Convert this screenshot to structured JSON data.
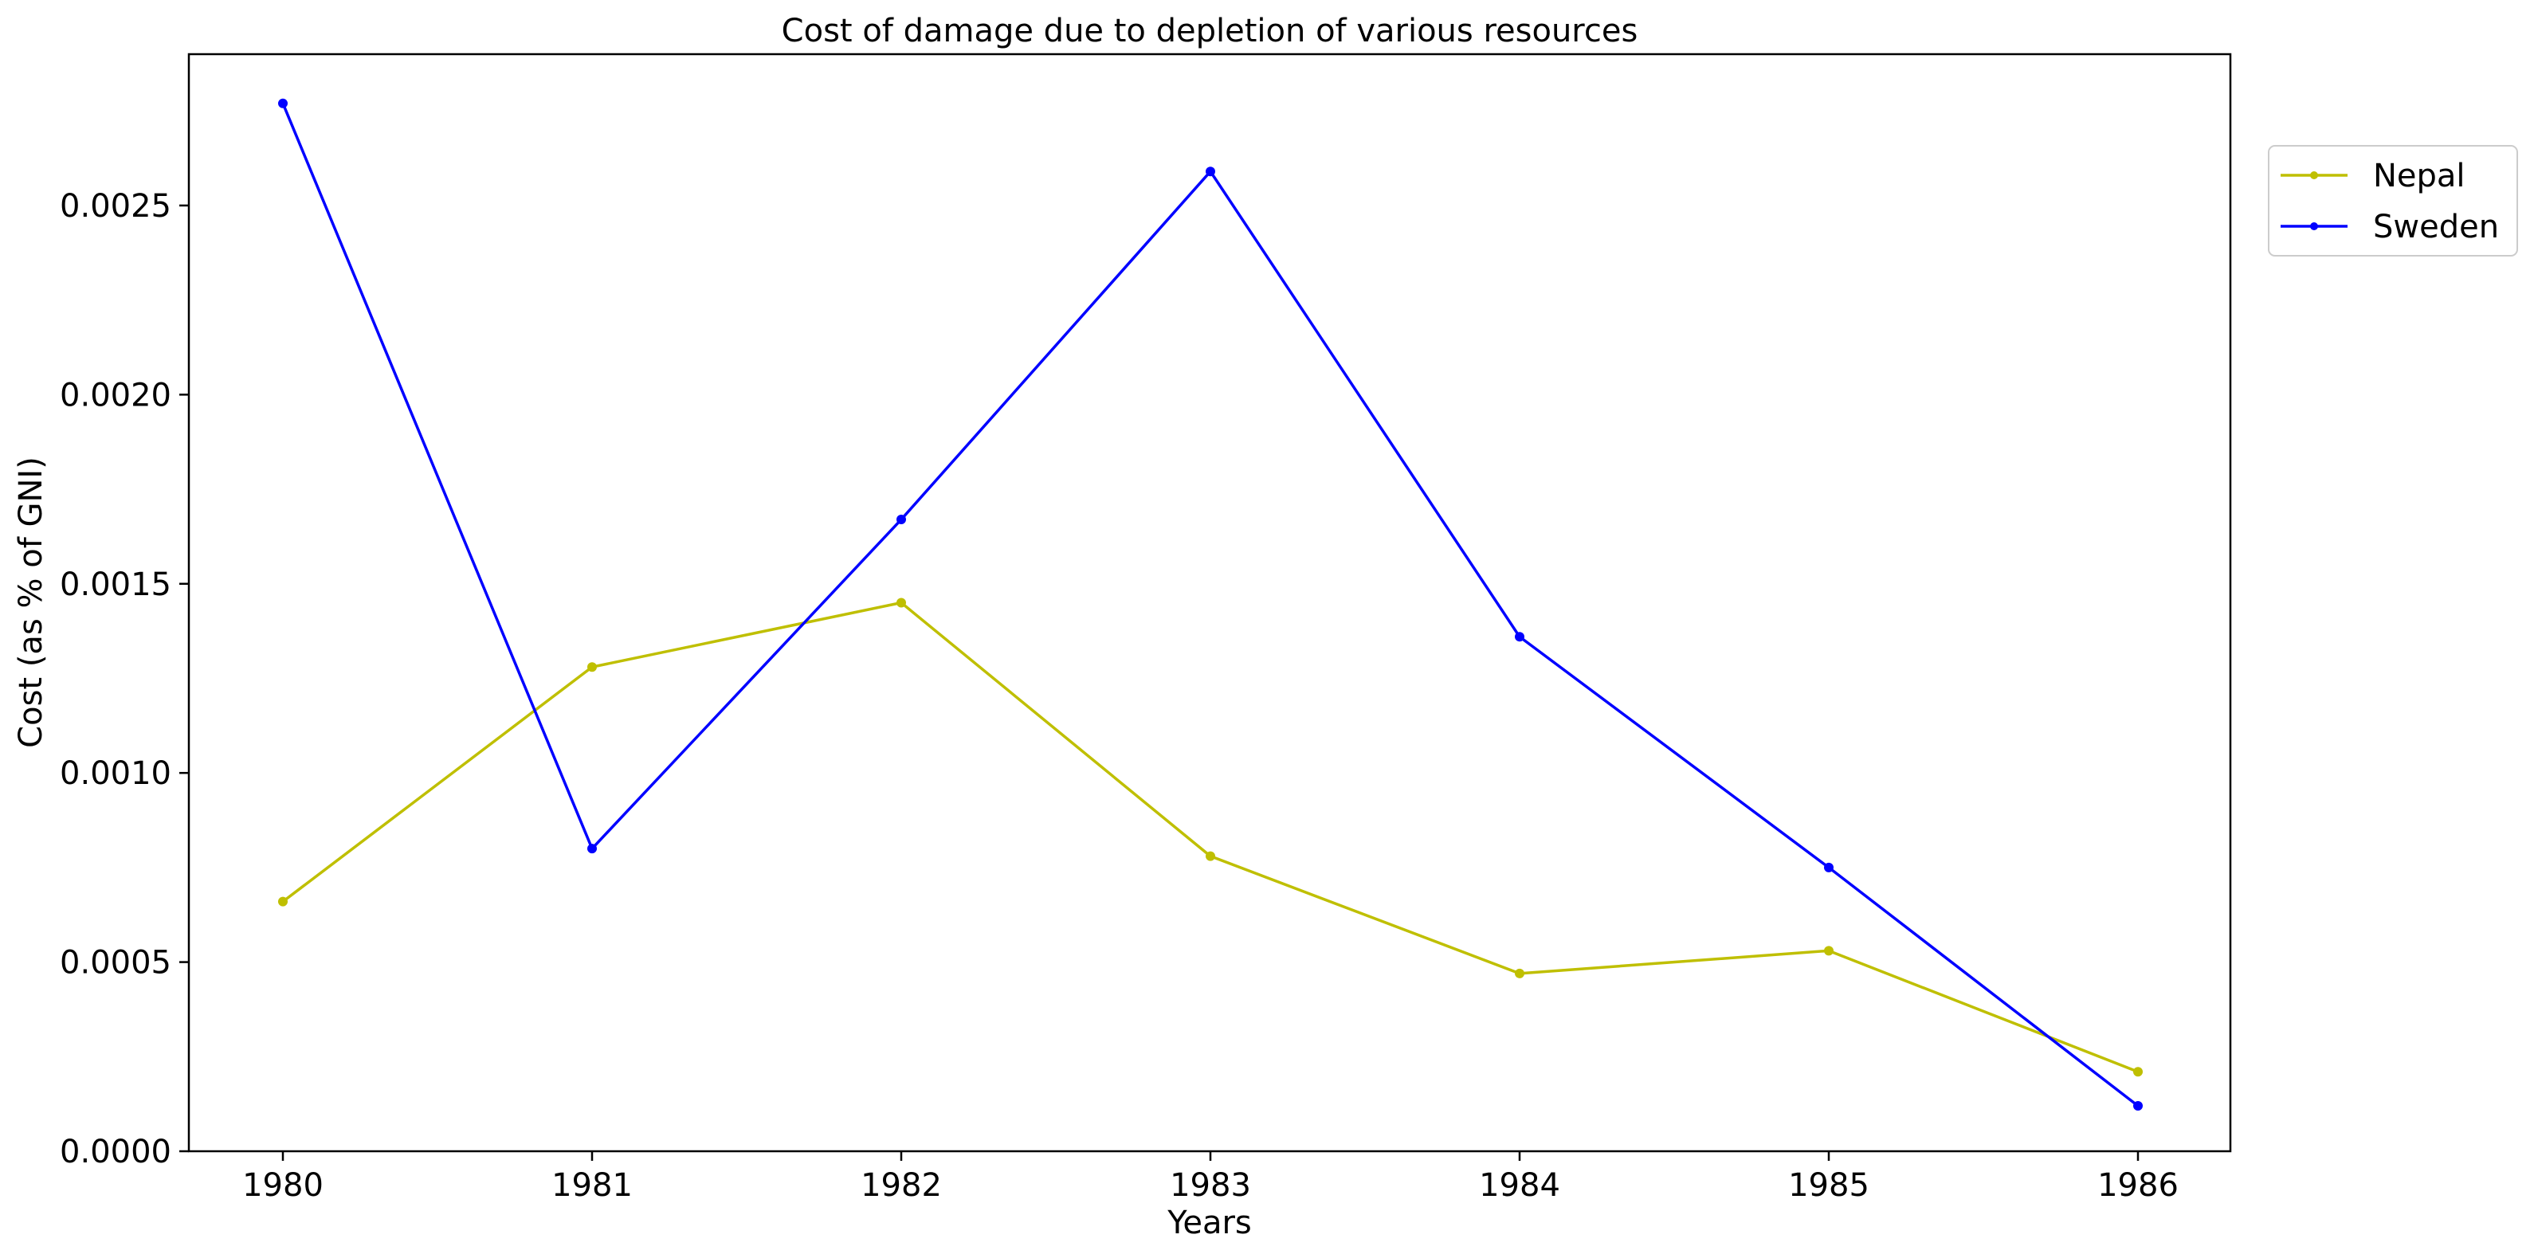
{
  "chart_data": {
    "type": "line",
    "title": "Cost of damage due to depletion of various resources",
    "xlabel": "Years",
    "ylabel": "Cost (as % of GNI)",
    "x": [
      "1980",
      "1981",
      "1982",
      "1983",
      "1984",
      "1985",
      "1986"
    ],
    "y_ticks": [
      "0.0000",
      "0.0005",
      "0.0010",
      "0.0015",
      "0.0020",
      "0.0025"
    ],
    "ylim": [
      0,
      0.0029
    ],
    "grid": false,
    "legend_position": "top-right, outside plot",
    "series": [
      {
        "name": "Nepal",
        "color": "#bfbf00",
        "values": [
          0.00066,
          0.00128,
          0.00145,
          0.00078,
          0.00047,
          0.00053,
          0.00021
        ]
      },
      {
        "name": "Sweden",
        "color": "#0000ff",
        "values": [
          0.00277,
          0.0008,
          0.00167,
          0.00259,
          0.00136,
          0.00075,
          0.00012
        ]
      }
    ]
  }
}
